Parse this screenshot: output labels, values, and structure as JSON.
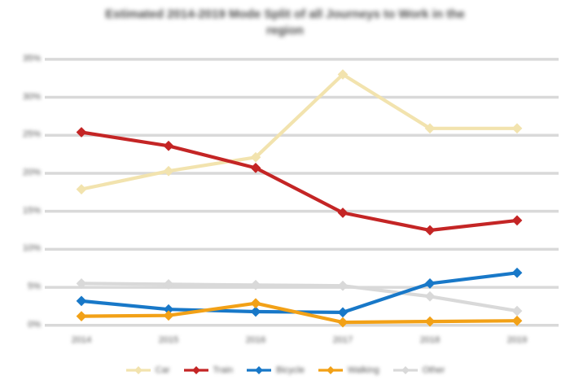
{
  "title": {
    "line1": "Estimated 2014-2019 Mode Split of all Journeys to Work in the",
    "line2": "region"
  },
  "chart_data": {
    "type": "line",
    "title": "Estimated 2014-2019 Mode Split of all Journeys to Work in the region",
    "xlabel": "",
    "ylabel": "",
    "x": [
      "2014",
      "2015",
      "2016",
      "2017",
      "2018",
      "2019"
    ],
    "x_tick_labels": [
      "2014",
      "2015",
      "2016",
      "2017",
      "2018",
      "2019"
    ],
    "y_tick_labels": [
      "35%",
      "30%",
      "25%",
      "20%",
      "15%",
      "10%",
      "5%",
      "0%"
    ],
    "y_tick_values": [
      35,
      30,
      25,
      20,
      15,
      10,
      5,
      0
    ],
    "ylim": [
      0,
      35
    ],
    "grid": true,
    "legend_position": "bottom",
    "marker": "diamond",
    "series": [
      {
        "name": "Car",
        "color": "#f2e3ae",
        "values": [
          17.9,
          20.3,
          22.1,
          33.0,
          25.9,
          25.9
        ]
      },
      {
        "name": "Train",
        "color": "#c42525",
        "values": [
          25.4,
          23.6,
          20.7,
          14.8,
          12.5,
          13.8
        ]
      },
      {
        "name": "Bicycle",
        "color": "#1878c8",
        "values": [
          3.2,
          2.1,
          1.8,
          1.7,
          5.5,
          6.9
        ]
      },
      {
        "name": "Walking",
        "color": "#f2a117",
        "values": [
          1.2,
          1.3,
          2.9,
          0.4,
          0.5,
          0.6
        ]
      },
      {
        "name": "Other",
        "color": "#d9d9d9",
        "values": [
          5.5,
          5.4,
          5.3,
          5.2,
          3.8,
          1.9
        ]
      }
    ],
    "colors": {
      "gridline": "#d9d9d9",
      "title_text": "#4a4a4a",
      "axis_text": "#545454",
      "background": "#ffffff"
    }
  }
}
